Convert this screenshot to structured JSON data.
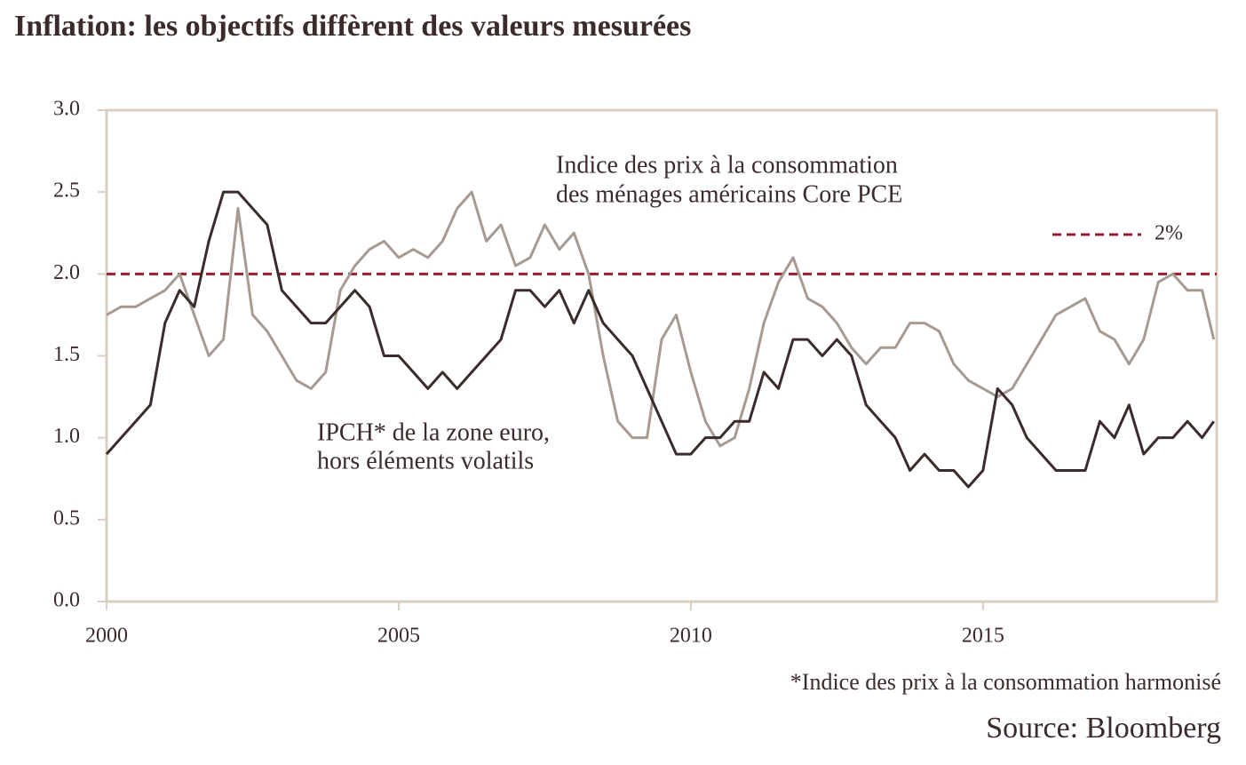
{
  "chart_data": {
    "type": "line",
    "title": "Inflation: les objectifs diffèrent des valeurs mesurées",
    "x": [
      2000,
      2000.25,
      2000.5,
      2000.75,
      2001,
      2001.25,
      2001.5,
      2001.75,
      2002,
      2002.25,
      2002.5,
      2002.75,
      2003,
      2003.25,
      2003.5,
      2003.75,
      2004,
      2004.25,
      2004.5,
      2004.75,
      2005,
      2005.25,
      2005.5,
      2005.75,
      2006,
      2006.25,
      2006.5,
      2006.75,
      2007,
      2007.25,
      2007.5,
      2007.75,
      2008,
      2008.25,
      2008.5,
      2008.75,
      2009,
      2009.25,
      2009.5,
      2009.75,
      2010,
      2010.25,
      2010.5,
      2010.75,
      2011,
      2011.25,
      2011.5,
      2011.75,
      2012,
      2012.25,
      2012.5,
      2012.75,
      2013,
      2013.25,
      2013.5,
      2013.75,
      2014,
      2014.25,
      2014.5,
      2014.75,
      2015,
      2015.25,
      2015.5,
      2015.75,
      2016,
      2016.25,
      2016.5,
      2016.75,
      2017,
      2017.25,
      2017.5,
      2017.75,
      2018,
      2018.25,
      2018.5,
      2018.75,
      2018.95
    ],
    "series": [
      {
        "name": "IPCH de la zone euro, hors éléments volatils",
        "color": "#3b2b2b",
        "values": [
          0.9,
          1.0,
          1.1,
          1.2,
          1.7,
          1.9,
          1.8,
          2.2,
          2.5,
          2.5,
          2.4,
          2.3,
          1.9,
          1.8,
          1.7,
          1.7,
          1.8,
          1.9,
          1.8,
          1.5,
          1.5,
          1.4,
          1.3,
          1.4,
          1.3,
          1.4,
          1.5,
          1.6,
          1.9,
          1.9,
          1.8,
          1.9,
          1.7,
          1.9,
          1.7,
          1.6,
          1.5,
          1.3,
          1.1,
          0.9,
          0.9,
          1.0,
          1.0,
          1.1,
          1.1,
          1.4,
          1.3,
          1.6,
          1.6,
          1.5,
          1.6,
          1.5,
          1.2,
          1.1,
          1.0,
          0.8,
          0.9,
          0.8,
          0.8,
          0.7,
          0.8,
          1.3,
          1.2,
          1.0,
          0.9,
          0.8,
          0.8,
          0.8,
          1.1,
          1.0,
          1.2,
          0.9,
          1.0,
          1.0,
          1.1,
          1.0,
          1.1
        ]
      },
      {
        "name": "Indice des prix à la consommation des ménages américains Core PCE",
        "color": "#a69a92",
        "values": [
          1.75,
          1.8,
          1.8,
          1.85,
          1.9,
          2.0,
          1.75,
          1.5,
          1.6,
          2.4,
          1.75,
          1.65,
          1.5,
          1.35,
          1.3,
          1.4,
          1.9,
          2.05,
          2.15,
          2.2,
          2.1,
          2.15,
          2.1,
          2.2,
          2.4,
          2.5,
          2.2,
          2.3,
          2.05,
          2.1,
          2.3,
          2.15,
          2.25,
          2.0,
          1.5,
          1.1,
          1.0,
          1.0,
          1.6,
          1.75,
          1.4,
          1.1,
          0.95,
          1.0,
          1.3,
          1.7,
          1.95,
          2.1,
          1.85,
          1.8,
          1.7,
          1.55,
          1.45,
          1.55,
          1.55,
          1.7,
          1.7,
          1.65,
          1.45,
          1.35,
          1.3,
          1.25,
          1.3,
          1.45,
          1.6,
          1.75,
          1.8,
          1.85,
          1.65,
          1.6,
          1.45,
          1.6,
          1.95,
          2.0,
          1.9,
          1.9,
          1.6
        ]
      }
    ],
    "annotations": [
      "Indice des prix à la consommation",
      "des ménages américains Core PCE",
      "IPCH* de la zone euro,",
      "hors éléments volatils"
    ],
    "hline": {
      "value": 2,
      "label": "2%",
      "color": "#9b1b2a"
    },
    "xlim": [
      2000,
      2019
    ],
    "ylim": [
      0,
      3
    ],
    "xticks": [
      2000,
      2005,
      2010,
      2015
    ],
    "yticks": [
      {
        "value": 0,
        "label": "0.0"
      },
      0.5,
      {
        "value": 1,
        "label": "1.0"
      },
      1.5,
      {
        "value": 2,
        "label": "2.0"
      },
      2.5,
      {
        "value": 3,
        "label": "3.0"
      }
    ],
    "footnote": "*Indice des prix à la consommation harmonisé",
    "source": "Source: Bloomberg"
  }
}
